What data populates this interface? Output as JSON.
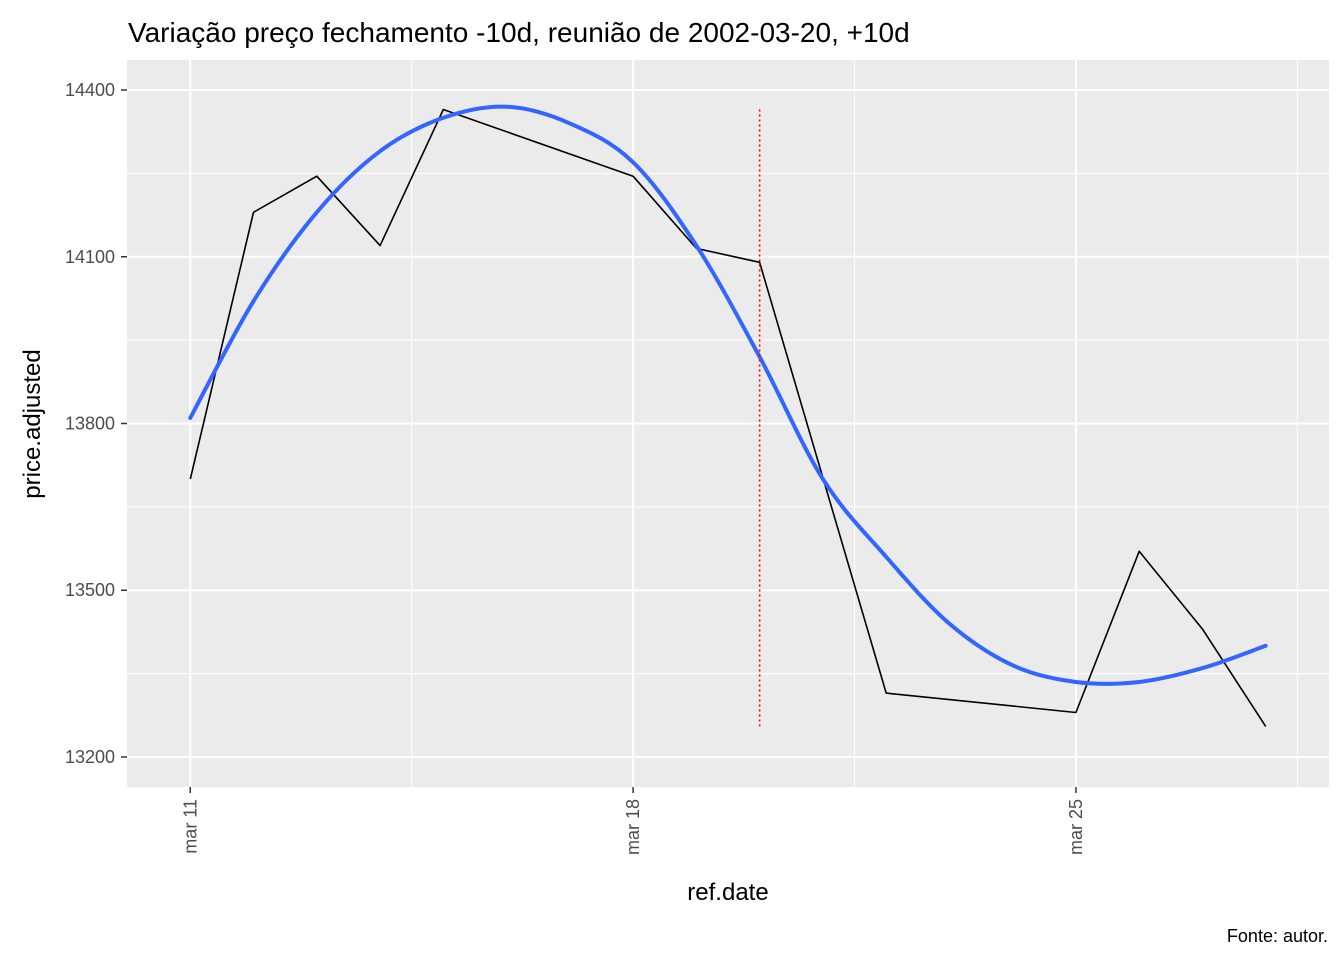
{
  "chart_data": {
    "type": "line",
    "title": "Variação preço fechamento -10d, reunião de 2002-03-20, +10d",
    "xlabel": "ref.date",
    "ylabel": "price.adjusted",
    "caption": "Fonte: autor.",
    "x_ticks": [
      "mar 11",
      "mar 18",
      "mar 25"
    ],
    "y_ticks": [
      13200,
      13500,
      13800,
      14100,
      14400
    ],
    "xlim": [
      "2002-03-10",
      "2002-03-29"
    ],
    "ylim": [
      13200,
      14400
    ],
    "grid": true,
    "panel_background": "#EBEBEB",
    "series": [
      {
        "color": "#000000",
        "style": "thin-line",
        "x": [
          "2002-03-11",
          "2002-03-12",
          "2002-03-13",
          "2002-03-14",
          "2002-03-15",
          "2002-03-18",
          "2002-03-19",
          "2002-03-20",
          "2002-03-22",
          "2002-03-25",
          "2002-03-26",
          "2002-03-27",
          "2002-03-28"
        ],
        "y": [
          13700,
          14180,
          14245,
          14120,
          14365,
          14245,
          14115,
          14090,
          13315,
          13280,
          13570,
          13430,
          13255
        ]
      },
      {
        "color": "#3366FF",
        "style": "smooth-line",
        "x": [
          "2002-03-11",
          "2002-03-12",
          "2002-03-13",
          "2002-03-14",
          "2002-03-15",
          "2002-03-16",
          "2002-03-17",
          "2002-03-18",
          "2002-03-19",
          "2002-03-20",
          "2002-03-21",
          "2002-03-22",
          "2002-03-23",
          "2002-03-24",
          "2002-03-25",
          "2002-03-26",
          "2002-03-27",
          "2002-03-28"
        ],
        "y": [
          13810,
          14020,
          14180,
          14290,
          14350,
          14370,
          14340,
          14270,
          14120,
          13920,
          13700,
          13560,
          13440,
          13365,
          13335,
          13335,
          13360,
          13400
        ]
      }
    ],
    "vline": {
      "x": "2002-03-20",
      "color": "#FF0000",
      "style": "dotted",
      "y_range": [
        13255,
        14365
      ]
    }
  }
}
